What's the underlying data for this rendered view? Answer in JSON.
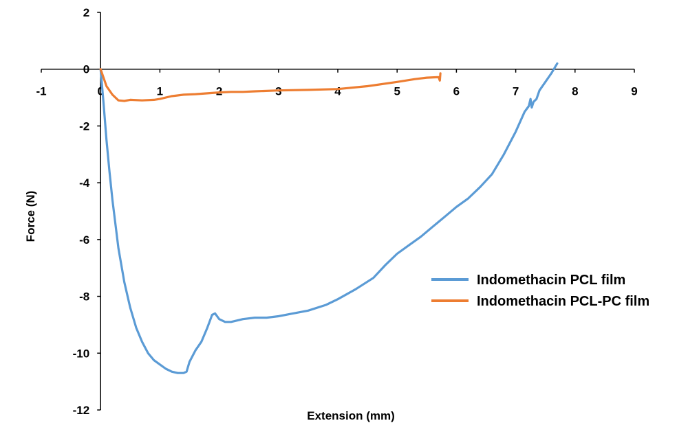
{
  "chart_data": {
    "type": "line",
    "title": "",
    "xlabel": "Extension (mm)",
    "ylabel": "Force (N)",
    "xlim": [
      -1,
      9
    ],
    "ylim": [
      -12,
      2
    ],
    "x_ticks": [
      -1,
      0,
      1,
      2,
      3,
      4,
      5,
      6,
      7,
      8,
      9
    ],
    "y_ticks": [
      2,
      0,
      -2,
      -4,
      -6,
      -8,
      -10,
      -12
    ],
    "grid": false,
    "legend_position": "right",
    "series": [
      {
        "name": "Indomethacin PCL film",
        "color": "#5b9bd5",
        "x": [
          0,
          0.05,
          0.1,
          0.15,
          0.2,
          0.3,
          0.4,
          0.5,
          0.6,
          0.7,
          0.8,
          0.9,
          1.0,
          1.1,
          1.2,
          1.3,
          1.4,
          1.45,
          1.5,
          1.6,
          1.7,
          1.8,
          1.88,
          1.93,
          2.0,
          2.1,
          2.2,
          2.4,
          2.6,
          2.8,
          3.0,
          3.2,
          3.5,
          3.8,
          4.0,
          4.3,
          4.6,
          4.8,
          5.0,
          5.2,
          5.4,
          5.6,
          5.8,
          6.0,
          6.2,
          6.4,
          6.6,
          6.8,
          7.0,
          7.15,
          7.22,
          7.25,
          7.27,
          7.3,
          7.35,
          7.4,
          7.5,
          7.6,
          7.7
        ],
        "values": [
          0,
          -1.2,
          -2.5,
          -3.6,
          -4.6,
          -6.3,
          -7.5,
          -8.4,
          -9.1,
          -9.6,
          -10.0,
          -10.25,
          -10.4,
          -10.55,
          -10.65,
          -10.7,
          -10.7,
          -10.65,
          -10.3,
          -9.9,
          -9.6,
          -9.1,
          -8.65,
          -8.6,
          -8.8,
          -8.9,
          -8.9,
          -8.8,
          -8.75,
          -8.75,
          -8.7,
          -8.62,
          -8.5,
          -8.3,
          -8.1,
          -7.75,
          -7.35,
          -6.9,
          -6.5,
          -6.2,
          -5.9,
          -5.55,
          -5.2,
          -4.85,
          -4.55,
          -4.15,
          -3.7,
          -3.0,
          -2.2,
          -1.5,
          -1.3,
          -1.05,
          -1.35,
          -1.15,
          -1.05,
          -0.75,
          -0.45,
          -0.15,
          0.2
        ]
      },
      {
        "name": "Indomethacin PCL-PC film",
        "color": "#ed7d31",
        "x": [
          0,
          0.05,
          0.1,
          0.2,
          0.3,
          0.4,
          0.5,
          0.7,
          0.9,
          1.0,
          1.2,
          1.4,
          1.6,
          1.8,
          2.0,
          2.2,
          2.4,
          2.6,
          3.0,
          3.5,
          4.0,
          4.5,
          5.0,
          5.3,
          5.5,
          5.7,
          5.72,
          5.73
        ],
        "values": [
          0,
          -0.3,
          -0.6,
          -0.9,
          -1.1,
          -1.12,
          -1.08,
          -1.1,
          -1.08,
          -1.05,
          -0.95,
          -0.9,
          -0.88,
          -0.85,
          -0.82,
          -0.8,
          -0.8,
          -0.78,
          -0.75,
          -0.73,
          -0.7,
          -0.6,
          -0.45,
          -0.35,
          -0.3,
          -0.28,
          -0.4,
          -0.15
        ]
      }
    ]
  }
}
